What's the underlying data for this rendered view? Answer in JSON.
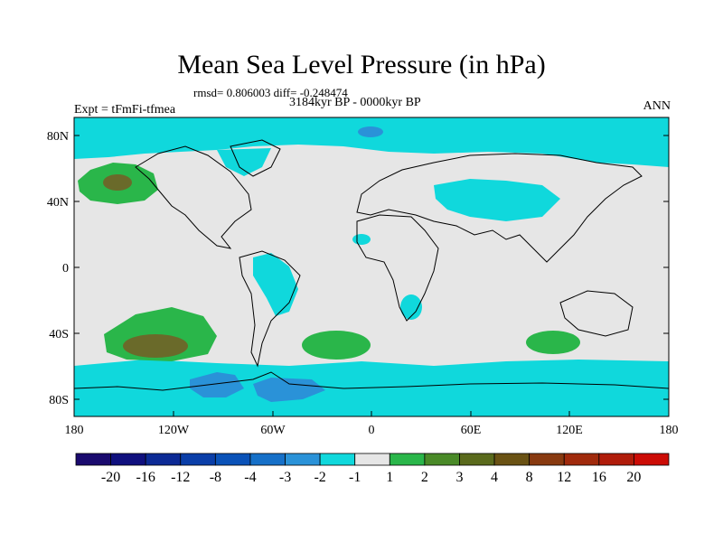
{
  "title": "Mean Sea Level Pressure (in hPa)",
  "stats": "rmsd= 0.806003 diff= -0.248474",
  "period": "3184kyr BP - 0000kyr BP",
  "experiment": "Expt = tFmFi-tfmea",
  "season": "ANN",
  "y_ticks": [
    "80N",
    "40N",
    "0",
    "40S",
    "80S"
  ],
  "x_ticks": [
    "180",
    "120W",
    "60W",
    "0",
    "60E",
    "120E",
    "180"
  ],
  "colorbar": {
    "labels": [
      "-20",
      "-16",
      "-12",
      "-8",
      "-4",
      "-3",
      "-2",
      "-1",
      "1",
      "2",
      "3",
      "4",
      "8",
      "12",
      "16",
      "20"
    ],
    "colors": [
      "#1a0a6e",
      "#10107e",
      "#0c2a95",
      "#0a3ea8",
      "#0a52b8",
      "#1670c8",
      "#2a92d8",
      "#10d8dc",
      "#e6e6e6",
      "#2ab64a",
      "#4a8a28",
      "#5a6a1c",
      "#6a5214",
      "#883a10",
      "#a02a0c",
      "#b01c0a",
      "#cc0c06"
    ]
  },
  "colors": {
    "neutral": "#e6e6e6",
    "neg1": "#10d8dc",
    "neg2": "#2a92d8",
    "pos1": "#2ab64a",
    "pos3": "#6a6a2a"
  }
}
